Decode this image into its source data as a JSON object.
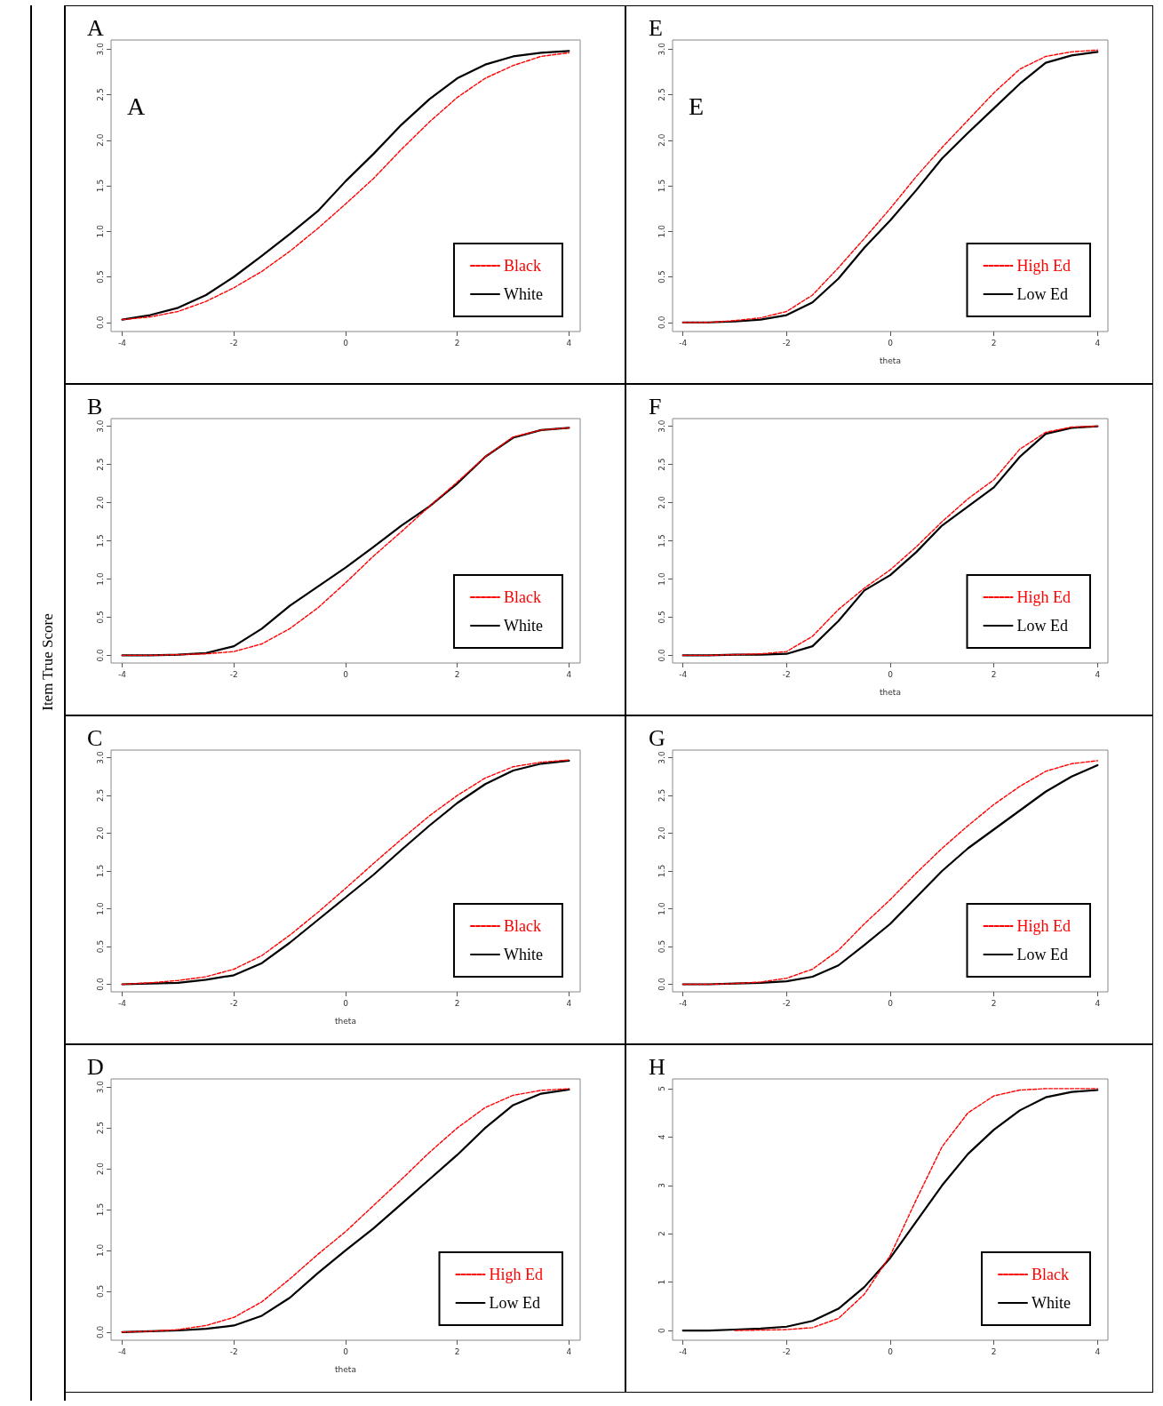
{
  "chart_data": [
    {
      "type": "line",
      "title": "A",
      "annotations": [
        "A"
      ],
      "x": [
        -4,
        -3.5,
        -3,
        -2.5,
        -2,
        -1.5,
        -1,
        -0.5,
        0,
        0.5,
        1,
        1.5,
        2,
        2.5,
        3,
        3.5,
        4
      ],
      "xlim": [
        -4.2,
        4.2
      ],
      "xticks": [
        -4,
        -2,
        0,
        2,
        4
      ],
      "ylim": [
        -0.1,
        3.1
      ],
      "yticks": [
        {
          "value": 0,
          "label": "0.0"
        },
        {
          "value": 0.5,
          "label": "0.5"
        },
        {
          "value": 1,
          "label": "1.0"
        },
        {
          "value": 1.5,
          "label": "1.5"
        },
        {
          "value": 2,
          "label": "2.0"
        },
        {
          "value": 2.5,
          "label": "2.5"
        },
        {
          "value": 3,
          "label": "3.0"
        }
      ],
      "legend": "bottom right",
      "marker": "none",
      "series": [
        {
          "name": "Black",
          "color": "#ff0000",
          "line_style": "dashed",
          "values": [
            0.03,
            0.06,
            0.12,
            0.23,
            0.38,
            0.56,
            0.78,
            1.03,
            1.3,
            1.58,
            1.9,
            2.2,
            2.47,
            2.68,
            2.82,
            2.92,
            2.96
          ]
        },
        {
          "name": "White",
          "color": "#000000",
          "line_style": "solid",
          "values": [
            0.03,
            0.08,
            0.16,
            0.3,
            0.5,
            0.73,
            0.97,
            1.22,
            1.55,
            1.85,
            2.17,
            2.45,
            2.68,
            2.83,
            2.92,
            2.96,
            2.98
          ]
        }
      ]
    },
    {
      "type": "line",
      "title": "E",
      "xlabel": "theta",
      "annotations": [
        "E"
      ],
      "x": [
        -4,
        -3.5,
        -3,
        -2.5,
        -2,
        -1.5,
        -1,
        -0.5,
        0,
        0.5,
        1,
        1.5,
        2,
        2.5,
        3,
        3.5,
        4
      ],
      "xlim": [
        -4.2,
        4.2
      ],
      "xticks": [
        -4,
        -2,
        0,
        2,
        4
      ],
      "ylim": [
        -0.1,
        3.1
      ],
      "yticks": [
        {
          "value": 0,
          "label": "0.0"
        },
        {
          "value": 0.5,
          "label": "0.5"
        },
        {
          "value": 1,
          "label": "1.0"
        },
        {
          "value": 1.5,
          "label": "1.5"
        },
        {
          "value": 2,
          "label": "2.0"
        },
        {
          "value": 2.5,
          "label": "2.5"
        },
        {
          "value": 3,
          "label": "3.0"
        }
      ],
      "legend": "bottom right",
      "marker": "none",
      "series": [
        {
          "name": "High Ed",
          "color": "#ff0000",
          "line_style": "dashed",
          "values": [
            0,
            0,
            0.02,
            0.05,
            0.12,
            0.3,
            0.6,
            0.92,
            1.25,
            1.6,
            1.92,
            2.22,
            2.52,
            2.78,
            2.92,
            2.97,
            2.99
          ]
        },
        {
          "name": "Low Ed",
          "color": "#000000",
          "line_style": "solid",
          "values": [
            0,
            0,
            0.01,
            0.03,
            0.08,
            0.22,
            0.48,
            0.82,
            1.12,
            1.45,
            1.8,
            2.08,
            2.35,
            2.62,
            2.85,
            2.93,
            2.97
          ]
        }
      ]
    },
    {
      "type": "line",
      "title": "B",
      "ylabel": "Item True Score",
      "x": [
        -4,
        -3.5,
        -3,
        -2.5,
        -2,
        -1.5,
        -1,
        -0.5,
        0,
        0.5,
        1,
        1.5,
        2,
        2.5,
        3,
        3.5,
        4
      ],
      "xlim": [
        -4.2,
        4.2
      ],
      "xticks": [
        -4,
        -2,
        0,
        2,
        4
      ],
      "ylim": [
        -0.1,
        3.1
      ],
      "yticks": [
        {
          "value": 0,
          "label": "0.0"
        },
        {
          "value": 0.5,
          "label": "0.5"
        },
        {
          "value": 1,
          "label": "1.0"
        },
        {
          "value": 1.5,
          "label": "1.5"
        },
        {
          "value": 2,
          "label": "2.0"
        },
        {
          "value": 2.5,
          "label": "2.5"
        },
        {
          "value": 3,
          "label": "3.0"
        }
      ],
      "legend": "bottom right",
      "marker": "none",
      "series": [
        {
          "name": "Black",
          "color": "#ff0000",
          "line_style": "dashed",
          "values": [
            0,
            0,
            0.01,
            0.02,
            0.05,
            0.15,
            0.35,
            0.62,
            0.95,
            1.3,
            1.62,
            1.95,
            2.27,
            2.6,
            2.86,
            2.95,
            2.98
          ]
        },
        {
          "name": "White",
          "color": "#000000",
          "line_style": "solid",
          "values": [
            0,
            0,
            0.01,
            0.03,
            0.12,
            0.35,
            0.65,
            0.9,
            1.15,
            1.42,
            1.7,
            1.95,
            2.25,
            2.6,
            2.85,
            2.95,
            2.98
          ]
        }
      ]
    },
    {
      "type": "line",
      "title": "F",
      "xlabel": "theta",
      "x": [
        -4,
        -3.5,
        -3,
        -2.5,
        -2,
        -1.5,
        -1,
        -0.5,
        0,
        0.5,
        1,
        1.5,
        2,
        2.5,
        3,
        3.5,
        4
      ],
      "xlim": [
        -4.2,
        4.2
      ],
      "xticks": [
        -4,
        -2,
        0,
        2,
        4
      ],
      "ylim": [
        -0.1,
        3.1
      ],
      "yticks": [
        {
          "value": 0,
          "label": "0.0"
        },
        {
          "value": 0.5,
          "label": "0.5"
        },
        {
          "value": 1,
          "label": "1.0"
        },
        {
          "value": 1.5,
          "label": "1.5"
        },
        {
          "value": 2,
          "label": "2.0"
        },
        {
          "value": 2.5,
          "label": "2.5"
        },
        {
          "value": 3,
          "label": "3.0"
        }
      ],
      "legend": "bottom right",
      "marker": "none",
      "series": [
        {
          "name": "High Ed",
          "color": "#ff0000",
          "line_style": "dashed",
          "values": [
            0,
            0,
            0.01,
            0.02,
            0.05,
            0.25,
            0.6,
            0.88,
            1.12,
            1.42,
            1.75,
            2.05,
            2.3,
            2.7,
            2.92,
            2.99,
            3
          ]
        },
        {
          "name": "Low Ed",
          "color": "#000000",
          "line_style": "solid",
          "values": [
            0,
            0,
            0.01,
            0.01,
            0.02,
            0.12,
            0.45,
            0.85,
            1.05,
            1.35,
            1.7,
            1.95,
            2.2,
            2.6,
            2.9,
            2.98,
            3
          ]
        }
      ]
    },
    {
      "type": "line",
      "title": "C",
      "xlabel": "theta",
      "x": [
        -4,
        -3.5,
        -3,
        -2.5,
        -2,
        -1.5,
        -1,
        -0.5,
        0,
        0.5,
        1,
        1.5,
        2,
        2.5,
        3,
        3.5,
        4
      ],
      "xlim": [
        -4.2,
        4.2
      ],
      "xticks": [
        -4,
        -2,
        0,
        2,
        4
      ],
      "ylim": [
        -0.1,
        3.1
      ],
      "yticks": [
        {
          "value": 0,
          "label": "0.0"
        },
        {
          "value": 0.5,
          "label": "0.5"
        },
        {
          "value": 1,
          "label": "1.0"
        },
        {
          "value": 1.5,
          "label": "1.5"
        },
        {
          "value": 2,
          "label": "2.0"
        },
        {
          "value": 2.5,
          "label": "2.5"
        },
        {
          "value": 3,
          "label": "3.0"
        }
      ],
      "legend": "bottom right",
      "marker": "none",
      "series": [
        {
          "name": "Black",
          "color": "#ff0000",
          "line_style": "dashed",
          "values": [
            0,
            0.02,
            0.05,
            0.1,
            0.2,
            0.38,
            0.65,
            0.95,
            1.27,
            1.6,
            1.92,
            2.23,
            2.5,
            2.73,
            2.88,
            2.94,
            2.97
          ]
        },
        {
          "name": "White",
          "color": "#000000",
          "line_style": "solid",
          "values": [
            0,
            0.01,
            0.02,
            0.06,
            0.12,
            0.28,
            0.55,
            0.85,
            1.15,
            1.45,
            1.78,
            2.1,
            2.4,
            2.65,
            2.83,
            2.92,
            2.96
          ]
        }
      ]
    },
    {
      "type": "line",
      "title": "G",
      "x": [
        -4,
        -3.5,
        -3,
        -2.5,
        -2,
        -1.5,
        -1,
        -0.5,
        0,
        0.5,
        1,
        1.5,
        2,
        2.5,
        3,
        3.5,
        4
      ],
      "xlim": [
        -4.2,
        4.2
      ],
      "xticks": [
        -4,
        -2,
        0,
        2,
        4
      ],
      "ylim": [
        -0.1,
        3.1
      ],
      "yticks": [
        {
          "value": 0,
          "label": "0.0"
        },
        {
          "value": 0.5,
          "label": "0.5"
        },
        {
          "value": 1,
          "label": "1.0"
        },
        {
          "value": 1.5,
          "label": "1.5"
        },
        {
          "value": 2,
          "label": "2.0"
        },
        {
          "value": 2.5,
          "label": "2.5"
        },
        {
          "value": 3,
          "label": "3.0"
        }
      ],
      "legend": "bottom right",
      "marker": "none",
      "series": [
        {
          "name": "High Ed",
          "color": "#ff0000",
          "line_style": "dashed",
          "values": [
            0,
            0,
            0.01,
            0.03,
            0.08,
            0.2,
            0.45,
            0.8,
            1.12,
            1.47,
            1.8,
            2.1,
            2.38,
            2.62,
            2.82,
            2.92,
            2.96
          ]
        },
        {
          "name": "Low Ed",
          "color": "#000000",
          "line_style": "solid",
          "values": [
            0,
            0,
            0.01,
            0.02,
            0.04,
            0.1,
            0.25,
            0.52,
            0.8,
            1.15,
            1.5,
            1.8,
            2.05,
            2.3,
            2.55,
            2.75,
            2.9
          ]
        }
      ]
    },
    {
      "type": "line",
      "title": "D",
      "xlabel": "theta",
      "x": [
        -4,
        -3.5,
        -3,
        -2.5,
        -2,
        -1.5,
        -1,
        -0.5,
        0,
        0.5,
        1,
        1.5,
        2,
        2.5,
        3,
        3.5,
        4
      ],
      "xlim": [
        -4.2,
        4.2
      ],
      "xticks": [
        -4,
        -2,
        0,
        2,
        4
      ],
      "ylim": [
        -0.1,
        3.1
      ],
      "yticks": [
        {
          "value": 0,
          "label": "0.0"
        },
        {
          "value": 0.5,
          "label": "0.5"
        },
        {
          "value": 1,
          "label": "1.0"
        },
        {
          "value": 1.5,
          "label": "1.5"
        },
        {
          "value": 2,
          "label": "2.0"
        },
        {
          "value": 2.5,
          "label": "2.5"
        },
        {
          "value": 3,
          "label": "3.0"
        }
      ],
      "legend": "bottom right",
      "marker": "none",
      "series": [
        {
          "name": "High Ed",
          "color": "#ff0000",
          "line_style": "dashed",
          "values": [
            0,
            0.01,
            0.03,
            0.08,
            0.18,
            0.37,
            0.65,
            0.95,
            1.23,
            1.55,
            1.87,
            2.2,
            2.5,
            2.75,
            2.9,
            2.96,
            2.98
          ]
        },
        {
          "name": "Low Ed",
          "color": "#000000",
          "line_style": "solid",
          "values": [
            0,
            0.01,
            0.02,
            0.04,
            0.08,
            0.2,
            0.42,
            0.72,
            1,
            1.27,
            1.57,
            1.87,
            2.17,
            2.5,
            2.78,
            2.92,
            2.97
          ]
        }
      ]
    },
    {
      "type": "line",
      "title": "H",
      "x": [
        -4,
        -3.5,
        -3,
        -2.5,
        -2,
        -1.5,
        -1,
        -0.5,
        0,
        0.5,
        1,
        1.5,
        2,
        2.5,
        3,
        3.5,
        4
      ],
      "xlim": [
        -4.2,
        4.2
      ],
      "xticks": [
        -4,
        -2,
        0,
        2,
        4
      ],
      "ylim": [
        -0.2,
        5.2
      ],
      "yticks": [
        0,
        1,
        2,
        3,
        4,
        5
      ],
      "legend": "bottom right",
      "marker": "none",
      "series": [
        {
          "name": "Black",
          "color": "#ff0000",
          "line_style": "dashed",
          "values": [
            null,
            null,
            0,
            0.01,
            0.02,
            0.06,
            0.25,
            0.75,
            1.55,
            2.7,
            3.8,
            4.5,
            4.85,
            4.97,
            5,
            5,
            5
          ]
        },
        {
          "name": "White",
          "color": "#000000",
          "line_style": "solid",
          "values": [
            0,
            0,
            0.02,
            0.04,
            0.08,
            0.2,
            0.45,
            0.9,
            1.5,
            2.25,
            3,
            3.65,
            4.15,
            4.55,
            4.82,
            4.93,
            4.97
          ]
        }
      ]
    }
  ]
}
